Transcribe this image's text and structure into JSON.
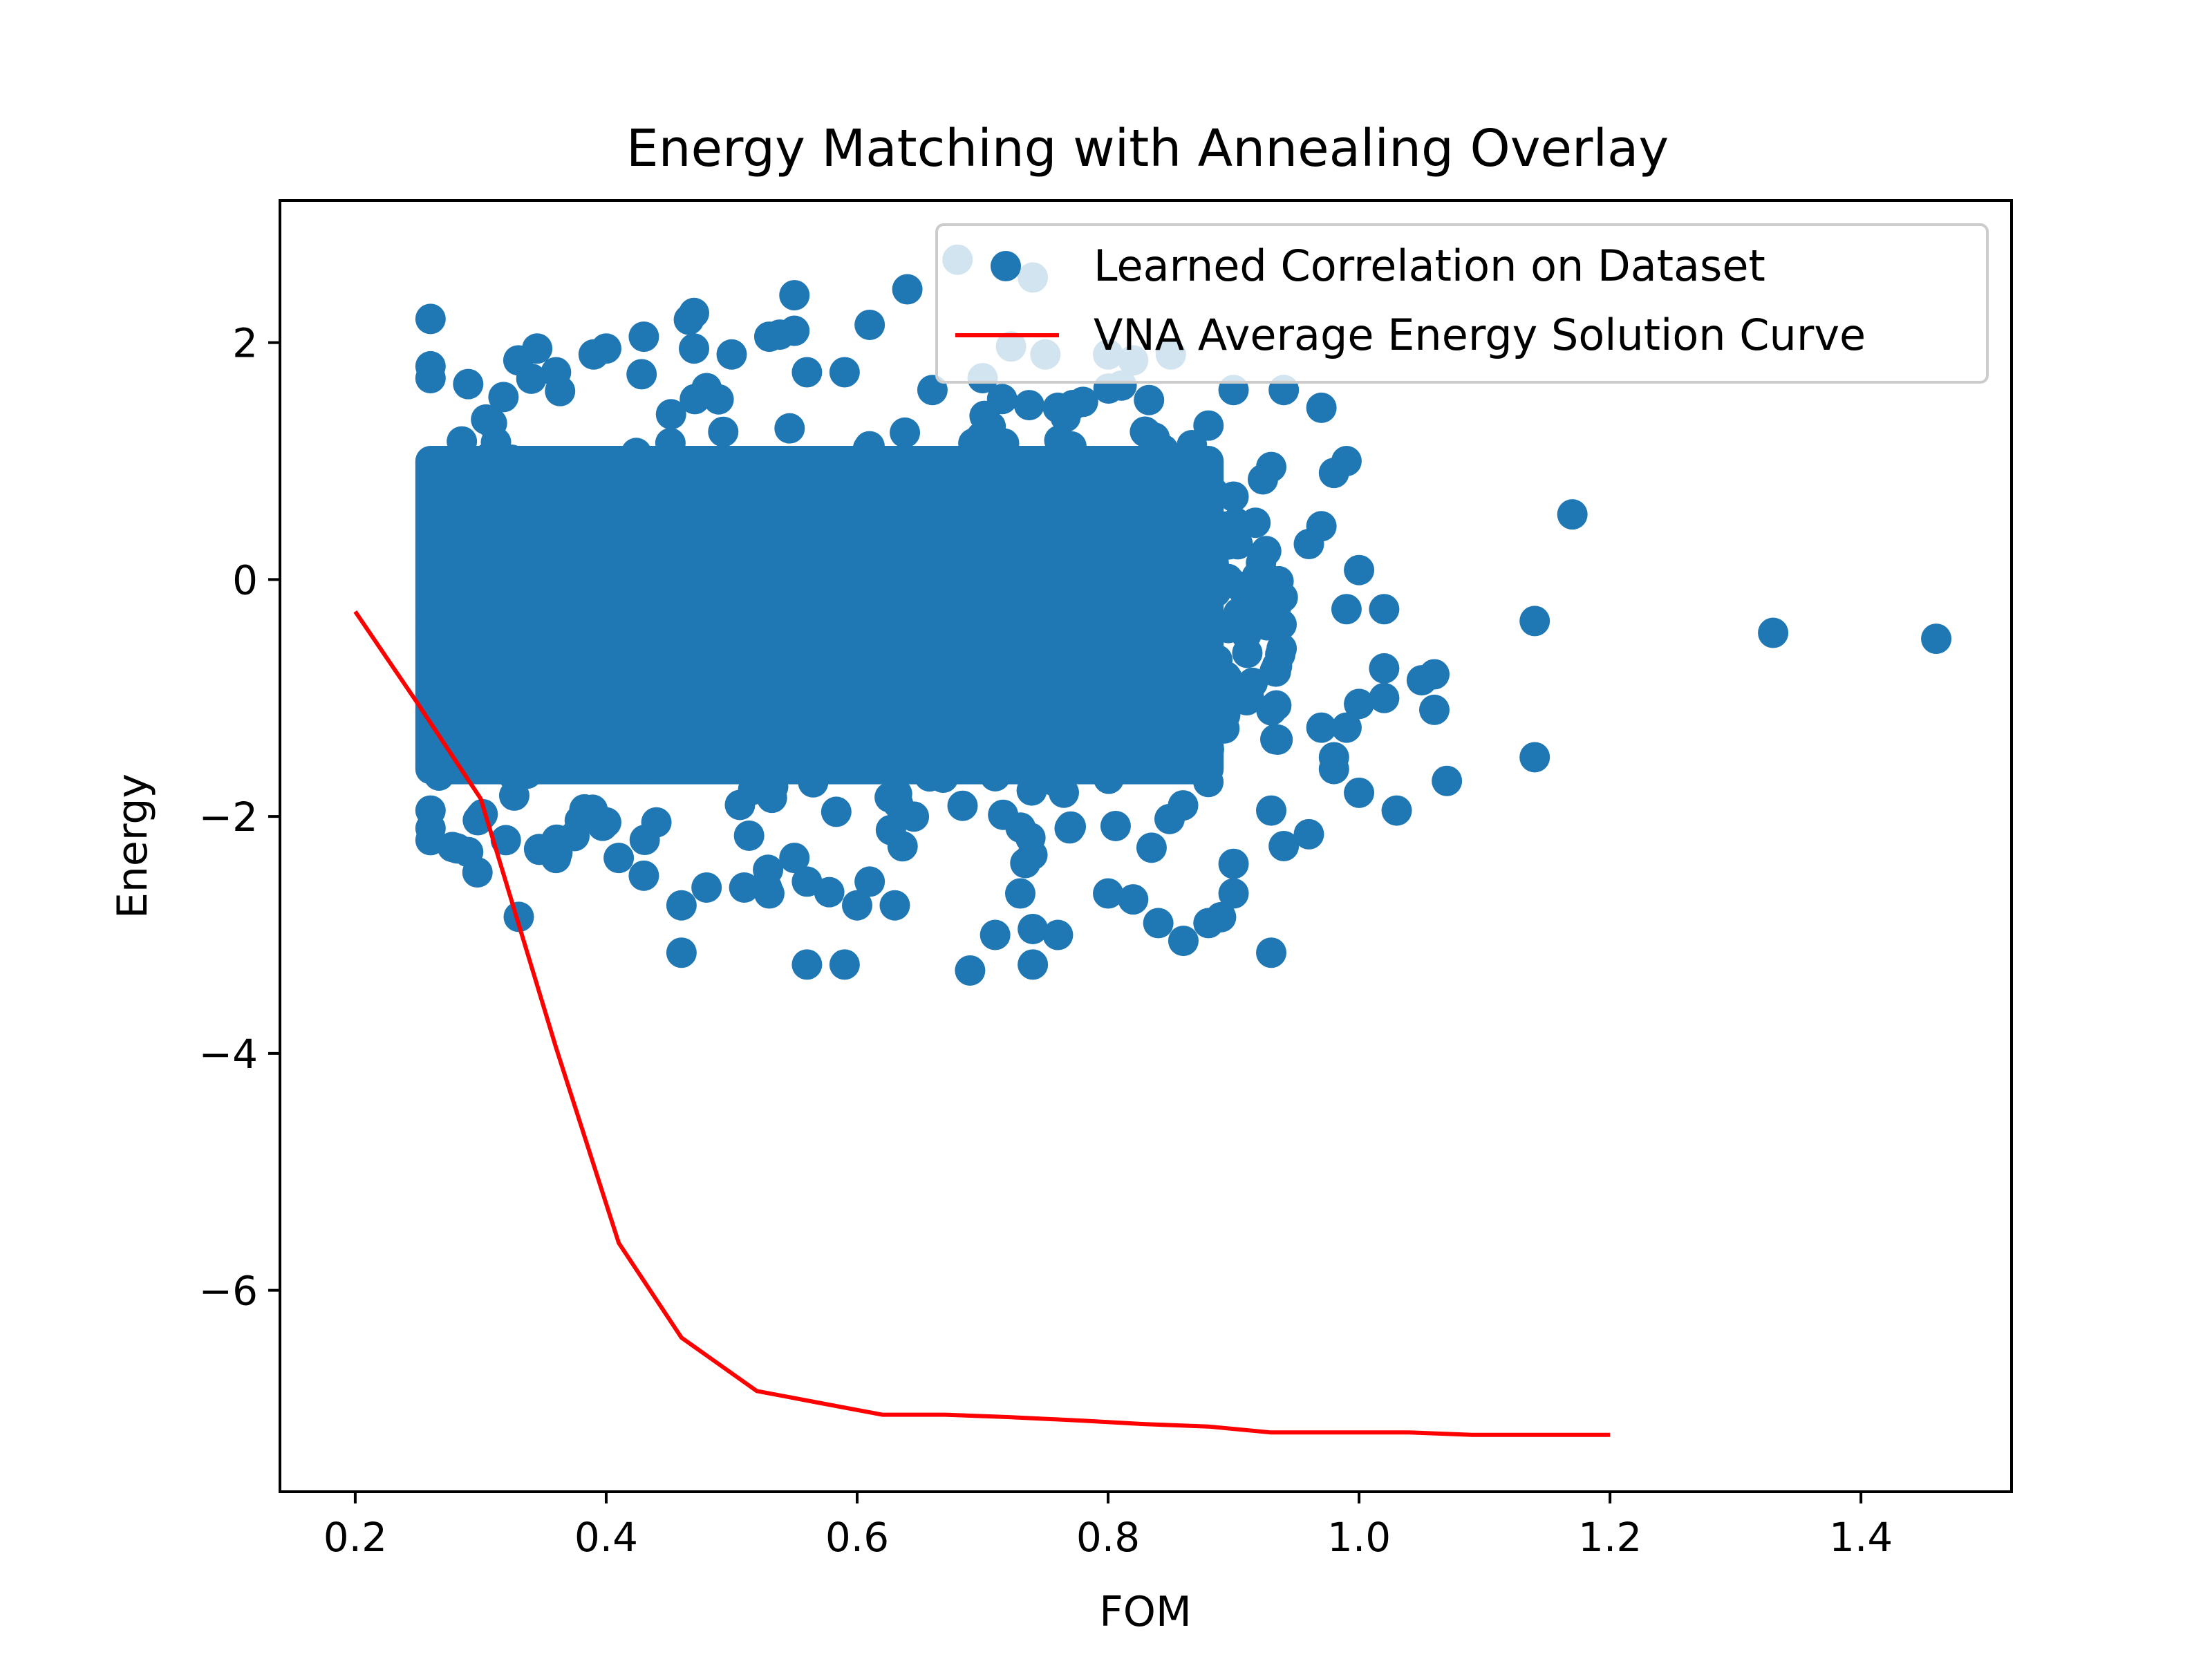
{
  "chart_data": {
    "type": "scatter",
    "title": "Energy Matching with Annealing Overlay",
    "xlabel": "FOM",
    "ylabel": "Energy",
    "xlim": [
      0.14,
      1.52
    ],
    "ylim": [
      -7.7,
      3.2
    ],
    "xticks": [
      {
        "value": 0.2,
        "label": "0.2"
      },
      {
        "value": 0.4,
        "label": "0.4"
      },
      {
        "value": 0.6,
        "label": "0.6"
      },
      {
        "value": 0.8,
        "label": "0.8"
      },
      {
        "value": 1.0,
        "label": "1.0"
      },
      {
        "value": 1.2,
        "label": "1.2"
      },
      {
        "value": 1.4,
        "label": "1.4"
      }
    ],
    "yticks": [
      {
        "value": 2,
        "label": "2"
      },
      {
        "value": 0,
        "label": "0"
      },
      {
        "value": -2,
        "label": "−2"
      },
      {
        "value": -4,
        "label": "−4"
      },
      {
        "value": -6,
        "label": "−6"
      }
    ],
    "grid": false,
    "legend_position": "top-right",
    "series": [
      {
        "name": "Learned Correlation on Dataset",
        "kind": "scatter",
        "color": "#1f77b4",
        "dense_region": {
          "x_range": [
            0.26,
            0.88
          ],
          "y_range": [
            -1.6,
            1.0
          ]
        },
        "points": [
          [
            0.26,
            2.2
          ],
          [
            0.26,
            1.8
          ],
          [
            0.26,
            1.7
          ],
          [
            0.29,
            1.65
          ],
          [
            0.33,
            1.85
          ],
          [
            0.345,
            1.95
          ],
          [
            0.36,
            1.75
          ],
          [
            0.39,
            1.9
          ],
          [
            0.4,
            1.95
          ],
          [
            0.43,
            2.05
          ],
          [
            0.47,
            2.25
          ],
          [
            0.47,
            1.95
          ],
          [
            0.5,
            1.9
          ],
          [
            0.53,
            2.05
          ],
          [
            0.55,
            2.4
          ],
          [
            0.55,
            2.1
          ],
          [
            0.56,
            1.75
          ],
          [
            0.59,
            1.75
          ],
          [
            0.61,
            2.15
          ],
          [
            0.64,
            2.45
          ],
          [
            0.68,
            2.7
          ],
          [
            0.74,
            2.55
          ],
          [
            0.66,
            1.6
          ],
          [
            0.7,
            1.7
          ],
          [
            0.75,
            1.9
          ],
          [
            0.76,
            1.45
          ],
          [
            0.78,
            1.5
          ],
          [
            0.8,
            1.9
          ],
          [
            0.82,
            1.85
          ],
          [
            0.85,
            1.9
          ],
          [
            0.9,
            1.6
          ],
          [
            0.94,
            1.6
          ],
          [
            0.97,
            1.45
          ],
          [
            0.88,
            1.3
          ],
          [
            0.93,
            0.95
          ],
          [
            0.99,
            1.0
          ],
          [
            0.98,
            0.9
          ],
          [
            0.9,
            0.7
          ],
          [
            0.97,
            0.45
          ],
          [
            0.96,
            0.3
          ],
          [
            1.0,
            0.08
          ],
          [
            1.02,
            -0.25
          ],
          [
            0.99,
            -0.25
          ],
          [
            1.02,
            -0.75
          ],
          [
            1.06,
            -0.8
          ],
          [
            1.05,
            -0.85
          ],
          [
            1.06,
            -1.1
          ],
          [
            1.02,
            -1.0
          ],
          [
            1.0,
            -1.05
          ],
          [
            0.99,
            -1.25
          ],
          [
            0.97,
            -1.25
          ],
          [
            0.98,
            -1.5
          ],
          [
            0.98,
            -1.6
          ],
          [
            1.0,
            -1.8
          ],
          [
            1.03,
            -1.95
          ],
          [
            1.07,
            -1.7
          ],
          [
            0.96,
            -2.15
          ],
          [
            0.94,
            -2.25
          ],
          [
            0.93,
            -1.95
          ],
          [
            0.9,
            -2.4
          ],
          [
            0.9,
            -2.65
          ],
          [
            0.89,
            -2.85
          ],
          [
            0.88,
            -2.9
          ],
          [
            0.86,
            -3.05
          ],
          [
            0.84,
            -2.9
          ],
          [
            0.82,
            -2.7
          ],
          [
            0.8,
            -2.65
          ],
          [
            0.76,
            -3.0
          ],
          [
            0.74,
            -3.25
          ],
          [
            0.74,
            -2.95
          ],
          [
            0.73,
            -2.65
          ],
          [
            0.71,
            -3.0
          ],
          [
            0.69,
            -3.3
          ],
          [
            0.63,
            -2.75
          ],
          [
            0.61,
            -2.55
          ],
          [
            0.6,
            -2.75
          ],
          [
            0.59,
            -3.25
          ],
          [
            0.56,
            -3.25
          ],
          [
            0.56,
            -2.55
          ],
          [
            0.55,
            -2.35
          ],
          [
            0.51,
            -2.6
          ],
          [
            0.53,
            -2.65
          ],
          [
            0.48,
            -2.6
          ],
          [
            0.46,
            -3.15
          ],
          [
            0.46,
            -2.75
          ],
          [
            0.43,
            -2.5
          ],
          [
            0.41,
            -2.35
          ],
          [
            0.36,
            -2.35
          ],
          [
            0.32,
            -2.2
          ],
          [
            0.29,
            -2.3
          ],
          [
            0.26,
            -2.2
          ],
          [
            0.26,
            -2.1
          ],
          [
            0.26,
            -1.95
          ],
          [
            0.3,
            -2.0
          ],
          [
            0.4,
            -2.05
          ],
          [
            0.44,
            -2.05
          ],
          [
            0.93,
            -3.15
          ],
          [
            1.14,
            -1.5
          ],
          [
            1.14,
            -0.35
          ],
          [
            1.17,
            0.55
          ],
          [
            1.33,
            -0.45
          ],
          [
            1.46,
            -0.5
          ]
        ]
      },
      {
        "name": "VNA Average Energy Solution Curve",
        "kind": "line",
        "color": "#ff0000",
        "x": [
          0.2,
          0.25,
          0.3,
          0.36,
          0.41,
          0.46,
          0.52,
          0.57,
          0.62,
          0.67,
          0.72,
          0.78,
          0.83,
          0.88,
          0.93,
          0.99,
          1.04,
          1.09,
          1.14,
          1.2
        ],
        "y": [
          -0.27,
          -1.05,
          -1.85,
          -3.95,
          -5.6,
          -6.4,
          -6.85,
          -6.95,
          -7.05,
          -7.05,
          -7.07,
          -7.1,
          -7.13,
          -7.15,
          -7.2,
          -7.2,
          -7.2,
          -7.22,
          -7.22,
          -7.22
        ]
      }
    ]
  }
}
